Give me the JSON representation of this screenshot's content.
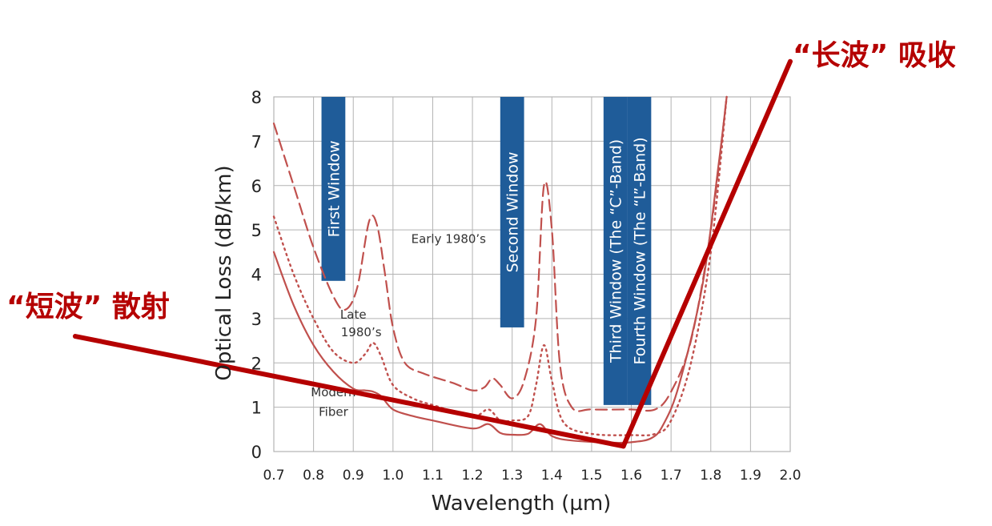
{
  "chart_data": {
    "type": "line",
    "xlabel": "Wavelength (µm)",
    "ylabel": "Optical Loss (dB/km)",
    "xlim": [
      0.7,
      2.0
    ],
    "ylim": [
      0,
      8
    ],
    "x_ticks": [
      0.7,
      0.8,
      0.9,
      1.0,
      1.1,
      1.2,
      1.3,
      1.4,
      1.5,
      1.6,
      1.7,
      1.8,
      1.9,
      2.0
    ],
    "x_tick_labels": [
      "0.7",
      "0.8",
      "0.9",
      "1.0",
      "1.1",
      "1.2",
      "1.3",
      "1.4",
      "1.5",
      "1.6",
      "1.7",
      "1.8",
      "1.9",
      "2.0"
    ],
    "y_ticks": [
      0,
      1,
      2,
      3,
      4,
      5,
      6,
      7,
      8
    ],
    "y_tick_labels": [
      "0",
      "1",
      "2",
      "3",
      "4",
      "5",
      "6",
      "7",
      "8"
    ],
    "grid": true,
    "colors": {
      "curve": "#c0504d",
      "window": "#1f5c99",
      "annotation": "#b50000",
      "grid": "#b3b3b3"
    },
    "series": [
      {
        "name": "Early 1980's",
        "style": "dashed",
        "points": [
          [
            0.7,
            7.4
          ],
          [
            0.75,
            6.0
          ],
          [
            0.8,
            4.6
          ],
          [
            0.85,
            3.5
          ],
          [
            0.88,
            3.2
          ],
          [
            0.91,
            3.7
          ],
          [
            0.94,
            5.2
          ],
          [
            0.96,
            5.1
          ],
          [
            0.98,
            4.0
          ],
          [
            1.0,
            2.8
          ],
          [
            1.03,
            2.0
          ],
          [
            1.08,
            1.75
          ],
          [
            1.15,
            1.55
          ],
          [
            1.2,
            1.38
          ],
          [
            1.23,
            1.45
          ],
          [
            1.25,
            1.65
          ],
          [
            1.27,
            1.5
          ],
          [
            1.3,
            1.2
          ],
          [
            1.33,
            1.6
          ],
          [
            1.36,
            3.0
          ],
          [
            1.38,
            6.0
          ],
          [
            1.4,
            5.0
          ],
          [
            1.42,
            2.0
          ],
          [
            1.45,
            1.0
          ],
          [
            1.5,
            0.95
          ],
          [
            1.6,
            0.95
          ],
          [
            1.66,
            0.95
          ],
          [
            1.7,
            1.35
          ],
          [
            1.75,
            2.5
          ],
          [
            1.8,
            5.0
          ],
          [
            1.84,
            8.0
          ]
        ]
      },
      {
        "name": "Late 1980's",
        "style": "dotted",
        "points": [
          [
            0.7,
            5.3
          ],
          [
            0.75,
            4.0
          ],
          [
            0.8,
            3.0
          ],
          [
            0.85,
            2.25
          ],
          [
            0.9,
            2.0
          ],
          [
            0.93,
            2.2
          ],
          [
            0.95,
            2.45
          ],
          [
            0.97,
            2.15
          ],
          [
            1.0,
            1.5
          ],
          [
            1.05,
            1.2
          ],
          [
            1.1,
            1.05
          ],
          [
            1.2,
            0.8
          ],
          [
            1.24,
            0.95
          ],
          [
            1.27,
            0.7
          ],
          [
            1.3,
            0.7
          ],
          [
            1.34,
            0.8
          ],
          [
            1.36,
            1.5
          ],
          [
            1.38,
            2.4
          ],
          [
            1.4,
            1.6
          ],
          [
            1.43,
            0.65
          ],
          [
            1.5,
            0.4
          ],
          [
            1.6,
            0.37
          ],
          [
            1.66,
            0.4
          ],
          [
            1.7,
            0.7
          ],
          [
            1.75,
            2.0
          ],
          [
            1.8,
            4.5
          ],
          [
            1.84,
            8.0
          ]
        ]
      },
      {
        "name": "Modern Fiber",
        "style": "solid",
        "points": [
          [
            0.7,
            4.5
          ],
          [
            0.75,
            3.3
          ],
          [
            0.8,
            2.4
          ],
          [
            0.85,
            1.8
          ],
          [
            0.9,
            1.42
          ],
          [
            0.93,
            1.38
          ],
          [
            0.95,
            1.35
          ],
          [
            0.97,
            1.25
          ],
          [
            1.0,
            0.95
          ],
          [
            1.05,
            0.8
          ],
          [
            1.1,
            0.7
          ],
          [
            1.2,
            0.52
          ],
          [
            1.24,
            0.62
          ],
          [
            1.27,
            0.42
          ],
          [
            1.3,
            0.38
          ],
          [
            1.34,
            0.4
          ],
          [
            1.37,
            0.62
          ],
          [
            1.4,
            0.35
          ],
          [
            1.45,
            0.25
          ],
          [
            1.55,
            0.2
          ],
          [
            1.6,
            0.21
          ],
          [
            1.65,
            0.3
          ],
          [
            1.68,
            0.6
          ],
          [
            1.72,
            1.5
          ],
          [
            1.78,
            3.8
          ],
          [
            1.82,
            6.5
          ],
          [
            1.84,
            8.0
          ]
        ]
      }
    ],
    "curve_labels": [
      {
        "text": "Early 1980’s",
        "x": 1.14,
        "y": 4.7
      },
      {
        "text": "Late",
        "x": 0.9,
        "y": 3.0
      },
      {
        "text": "1980’s",
        "x": 0.92,
        "y": 2.6
      },
      {
        "text": "Modern",
        "x": 0.85,
        "y": 1.25
      },
      {
        "text": "Fiber",
        "x": 0.85,
        "y": 0.8
      }
    ],
    "windows": [
      {
        "label": "First Window",
        "x_start": 0.82,
        "x_end": 0.88,
        "y_top": 8,
        "y_bottom": 3.85
      },
      {
        "label": "Second Window",
        "x_start": 1.27,
        "x_end": 1.33,
        "y_top": 8,
        "y_bottom": 2.8
      },
      {
        "label": "Third Window (The “C”-Band)",
        "x_start": 1.53,
        "x_end": 1.59,
        "y_top": 8,
        "y_bottom": 1.05
      },
      {
        "label": "Fourth Window (The “L”-Band)",
        "x_start": 1.59,
        "x_end": 1.65,
        "y_top": 8,
        "y_bottom": 1.05
      }
    ],
    "annotations": [
      {
        "text": "“短波” 散射",
        "meaning": "short-wave scattering"
      },
      {
        "text": "“长波” 吸收",
        "meaning": "long-wave absorption"
      }
    ],
    "trend_lines": [
      {
        "name": "short-wave scattering",
        "from": [
          0.2,
          2.6
        ],
        "to": [
          1.58,
          0.12
        ]
      },
      {
        "name": "long-wave absorption",
        "from": [
          1.58,
          0.12
        ],
        "to": [
          2.0,
          8.8
        ]
      }
    ]
  }
}
